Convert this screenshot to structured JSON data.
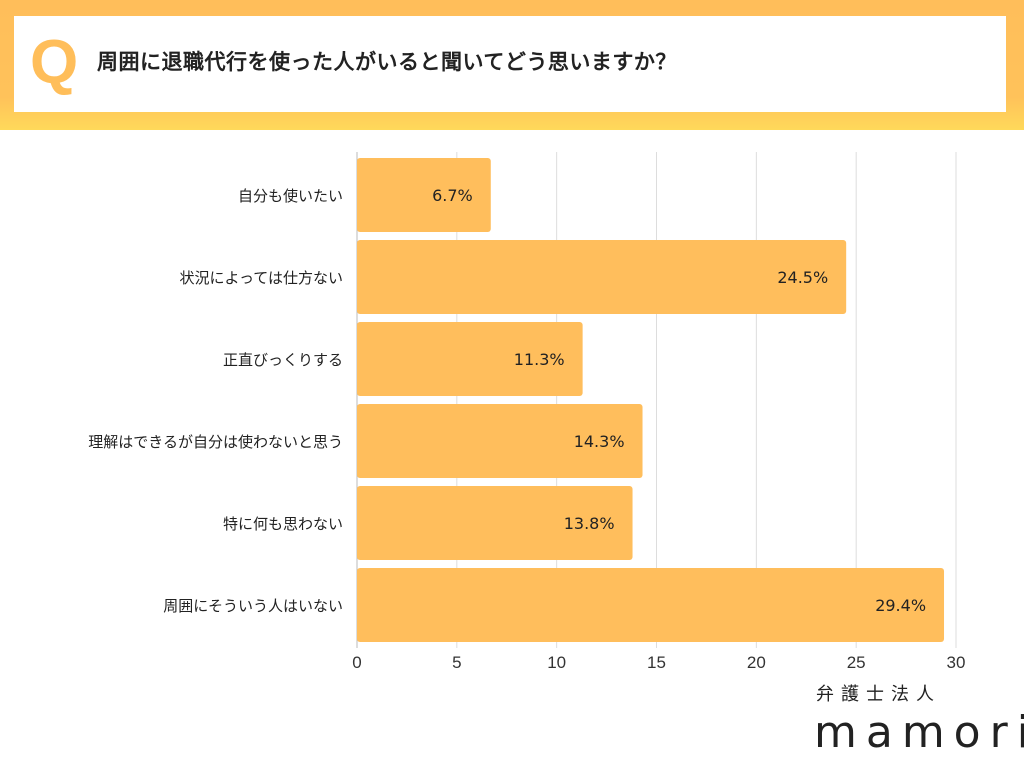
{
  "header": {
    "q_mark": "Q",
    "title": "周囲に退職代行を使った人がいると聞いてどう思いますか？"
  },
  "colors": {
    "bar": "#FFBE5C",
    "frame": "#FFBE5A",
    "grid": "#DDDDDD",
    "text": "#222222"
  },
  "chart_data": {
    "type": "bar",
    "orientation": "horizontal",
    "categories": [
      "自分も使いたい",
      "状況によっては仕方ない",
      "正直びっくりする",
      "理解はできるが自分は使わないと思う",
      "特に何も思わない",
      "周囲にそういう人はいない"
    ],
    "values": [
      6.7,
      24.5,
      11.3,
      14.3,
      13.8,
      29.4
    ],
    "data_labels": [
      "6.7%",
      "24.5%",
      "11.3%",
      "14.3%",
      "13.8%",
      "29.4%"
    ],
    "xlim": [
      0,
      30
    ],
    "xticks": [
      "0",
      "5",
      "10",
      "15",
      "20",
      "25",
      "30"
    ],
    "grid": true
  },
  "logo": {
    "top": "弁護士法人",
    "main": "mamori"
  }
}
